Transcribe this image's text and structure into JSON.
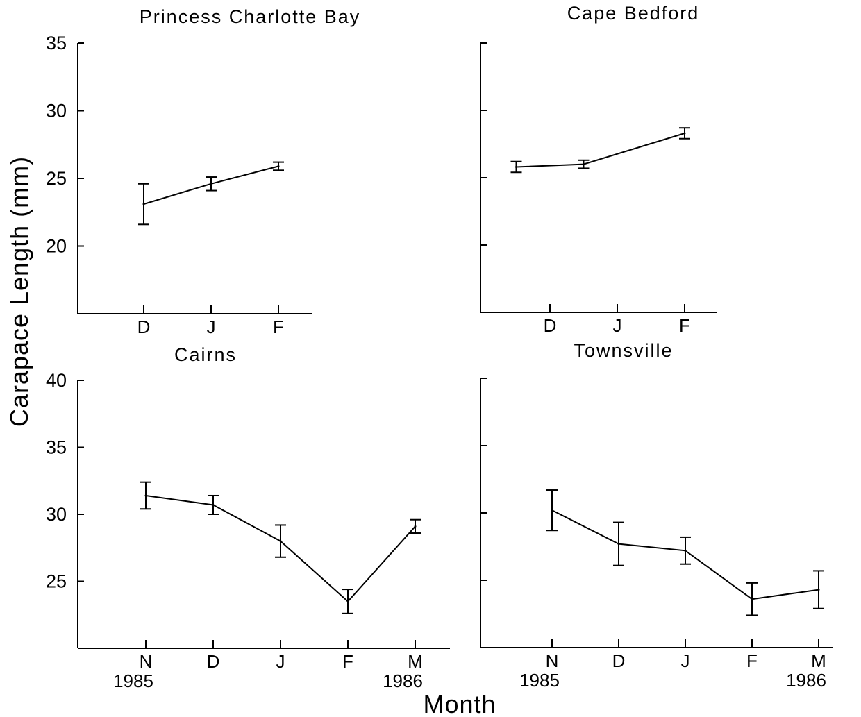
{
  "figure": {
    "xlabel": "Month",
    "ylabel": "Carapace  Length  (mm)"
  },
  "chart_data": [
    {
      "type": "line",
      "title": "Princess Charlotte Bay",
      "xlabel": "",
      "ylabel": "",
      "ylim": [
        15,
        35
      ],
      "yticks": [
        20,
        25,
        30,
        35
      ],
      "ytick_labels": [
        "20",
        "25",
        "30",
        "35"
      ],
      "categories": [
        "D",
        "J",
        "F"
      ],
      "category_sublabels": [
        "",
        "",
        ""
      ],
      "series": [
        {
          "x": [
            0,
            1,
            2
          ],
          "y": [
            23.1,
            24.6,
            25.9
          ],
          "err": [
            1.5,
            0.5,
            0.3
          ]
        }
      ],
      "grid": false,
      "legend": "none"
    },
    {
      "type": "line",
      "title": "Cape Bedford",
      "xlabel": "",
      "ylabel": "",
      "ylim": [
        15,
        35
      ],
      "yticks": [
        20,
        25,
        30,
        35
      ],
      "ytick_labels": [
        "",
        "",
        "",
        ""
      ],
      "categories": [
        "D",
        "J",
        "F"
      ],
      "category_sublabels": [
        "",
        "",
        ""
      ],
      "series": [
        {
          "x": [
            -0.5,
            0.5,
            2
          ],
          "y": [
            25.8,
            26.0,
            28.3
          ],
          "err": [
            0.4,
            0.3,
            0.4
          ]
        }
      ],
      "grid": false,
      "legend": "none"
    },
    {
      "type": "line",
      "title": "Cairns",
      "xlabel": "",
      "ylabel": "",
      "ylim": [
        20,
        40
      ],
      "yticks": [
        25,
        30,
        35,
        40
      ],
      "ytick_labels": [
        "25",
        "30",
        "35",
        "40"
      ],
      "categories": [
        "N",
        "D",
        "J",
        "F",
        "M"
      ],
      "category_sublabels": [
        "1985",
        "",
        "",
        "",
        "1986"
      ],
      "series": [
        {
          "x": [
            0,
            1,
            2,
            3,
            4
          ],
          "y": [
            31.4,
            30.7,
            28.0,
            23.5,
            29.1
          ],
          "err": [
            1.0,
            0.7,
            1.2,
            0.9,
            0.5
          ]
        }
      ],
      "grid": false,
      "legend": "none"
    },
    {
      "type": "line",
      "title": "Townsville",
      "xlabel": "",
      "ylabel": "",
      "ylim": [
        20,
        40
      ],
      "yticks": [
        25,
        30,
        35,
        40
      ],
      "ytick_labels": [
        "",
        "",
        "",
        ""
      ],
      "categories": [
        "N",
        "D",
        "J",
        "F",
        "M"
      ],
      "category_sublabels": [
        "1985",
        "",
        "",
        "",
        "1986"
      ],
      "series": [
        {
          "x": [
            0,
            1,
            2,
            3,
            4
          ],
          "y": [
            30.2,
            27.7,
            27.2,
            23.6,
            24.3
          ],
          "err": [
            1.5,
            1.6,
            1.0,
            1.2,
            1.4
          ]
        }
      ],
      "grid": false,
      "legend": "none"
    }
  ]
}
